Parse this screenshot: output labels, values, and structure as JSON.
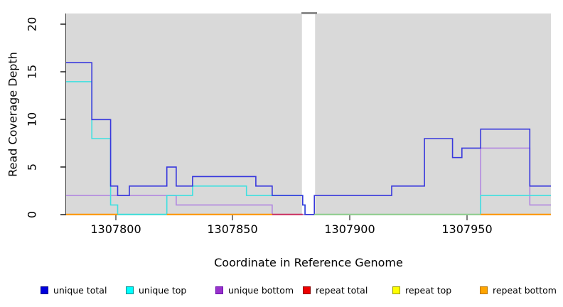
{
  "chart_data": {
    "type": "line",
    "step": true,
    "title": "",
    "xlabel": "Coordinate in Reference Genome",
    "ylabel": "Read Coverage Depth",
    "xlim": [
      1307779,
      1307986
    ],
    "ylim": [
      0,
      21.2
    ],
    "x_tick_values": [
      1307800,
      1307850,
      1307900,
      1307950
    ],
    "x_tick_labels": [
      "1307800",
      "1307850",
      "1307900",
      "1307950"
    ],
    "y_tick_values": [
      0,
      5,
      10,
      15,
      20
    ],
    "y_tick_labels": [
      "0",
      "5",
      "10",
      "15",
      "20"
    ],
    "grid": false,
    "legend_position": "bottom",
    "panel_bg": "#d9d9d9",
    "gap_region": {
      "x0": 1307879.7,
      "x1": 1307885.3,
      "color": "#ffffff"
    },
    "series": [
      {
        "name": "repeat total",
        "color": "#dd0000",
        "points": [
          [
            1307779,
            0
          ],
          [
            1307986,
            0
          ]
        ]
      },
      {
        "name": "repeat top",
        "color": "#eded00",
        "points": [
          [
            1307779,
            0
          ],
          [
            1307986,
            0
          ]
        ]
      },
      {
        "name": "unique bottom",
        "color": "#b288e0",
        "points": [
          [
            1307779,
            2
          ],
          [
            1307826,
            1
          ],
          [
            1307867,
            0
          ],
          [
            1307956,
            7
          ],
          [
            1307977,
            1
          ],
          [
            1307986,
            1
          ]
        ]
      },
      {
        "name": "unique top",
        "color": "#3fe0e0",
        "points": [
          [
            1307779,
            14
          ],
          [
            1307790,
            8
          ],
          [
            1307798,
            1
          ],
          [
            1307801,
            0
          ],
          [
            1307822,
            2
          ],
          [
            1307833,
            3
          ],
          [
            1307856,
            2
          ],
          [
            1307880,
            1
          ],
          [
            1307881,
            0
          ],
          [
            1307956,
            2
          ],
          [
            1307986,
            2
          ]
        ]
      },
      {
        "name": "unique total",
        "color": "#3838dd",
        "points": [
          [
            1307779,
            16
          ],
          [
            1307790,
            10
          ],
          [
            1307798,
            3
          ],
          [
            1307801,
            2
          ],
          [
            1307806,
            3
          ],
          [
            1307822,
            5
          ],
          [
            1307826,
            3
          ],
          [
            1307833,
            4
          ],
          [
            1307860,
            3
          ],
          [
            1307867,
            2
          ],
          [
            1307880,
            1
          ],
          [
            1307881,
            0
          ],
          [
            1307885,
            2
          ],
          [
            1307918,
            3
          ],
          [
            1307932,
            8
          ],
          [
            1307944,
            6
          ],
          [
            1307948,
            7
          ],
          [
            1307956,
            9
          ],
          [
            1307977,
            3
          ],
          [
            1307986,
            3
          ]
        ]
      }
    ],
    "zero_line_overlays": [
      {
        "color": "#ff9800",
        "x0": 1307779,
        "x1": 1307801
      },
      {
        "color": "#3fe0e0",
        "x0": 1307801,
        "x1": 1307822
      },
      {
        "color": "#ff9800",
        "x0": 1307822,
        "x1": 1307867
      },
      {
        "color": "#cc3366",
        "x0": 1307867,
        "x1": 1307880
      },
      {
        "color": "#90d090",
        "x0": 1307885,
        "x1": 1307956
      },
      {
        "color": "#ff9800",
        "x0": 1307956,
        "x1": 1307986
      }
    ]
  },
  "legend": {
    "items": [
      {
        "label": "unique total",
        "fill": "#0000dd",
        "border": "#000088"
      },
      {
        "label": "unique top",
        "fill": "#00ffff",
        "border": "#008b8b"
      },
      {
        "label": "unique bottom",
        "fill": "#9932cc",
        "border": "#6a0dad"
      },
      {
        "label": "repeat total",
        "fill": "#ee0000",
        "border": "#8b0000"
      },
      {
        "label": "repeat top",
        "fill": "#ffff00",
        "border": "#9a9a00"
      },
      {
        "label": "repeat bottom",
        "fill": "#ffa500",
        "border": "#b87400"
      }
    ]
  }
}
